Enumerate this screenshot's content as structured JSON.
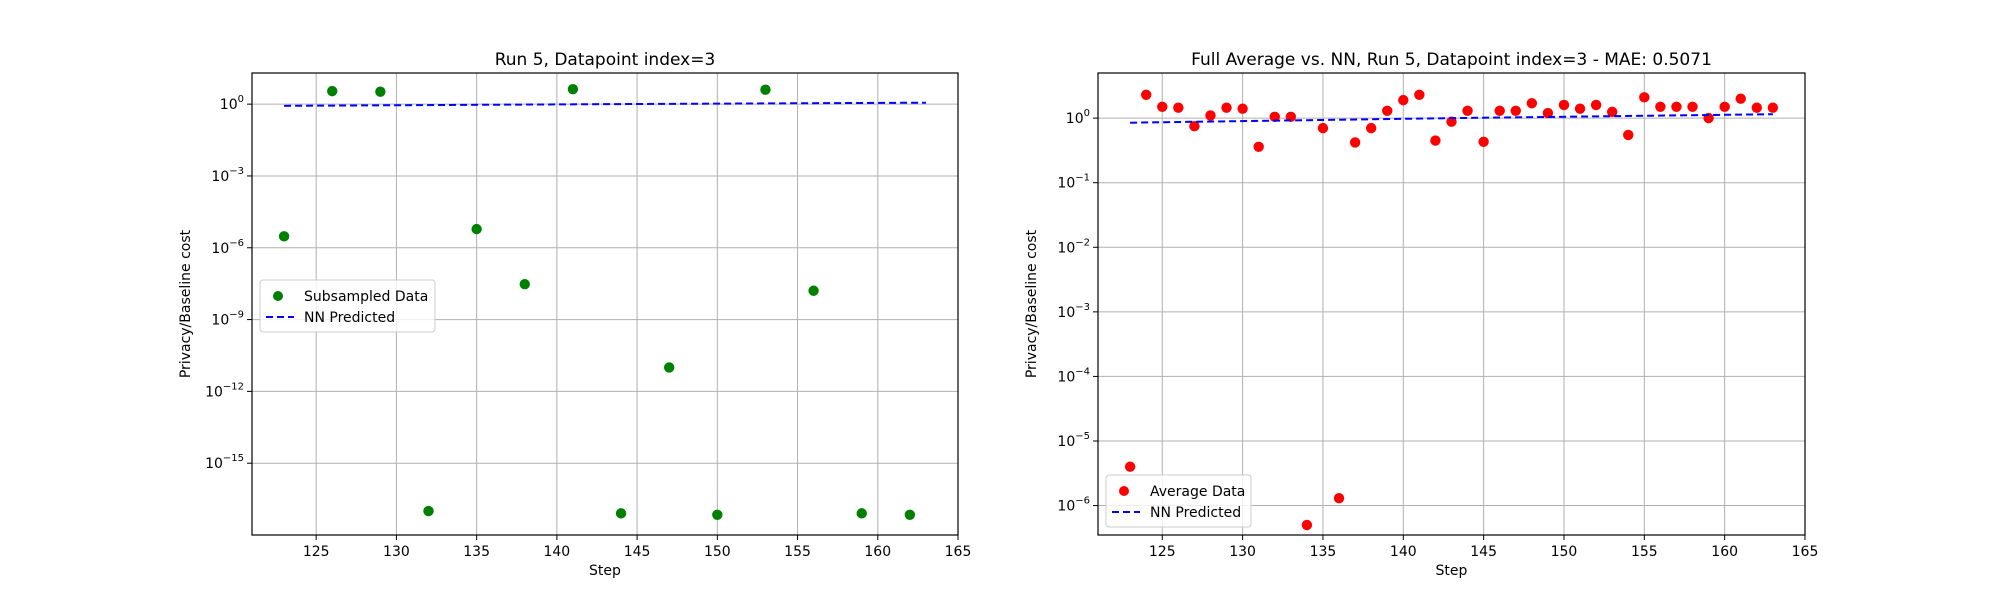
{
  "chart_data": [
    {
      "type": "scatter",
      "title": "Run 5, Datapoint index=3",
      "xlabel": "Step",
      "ylabel": "Privacy/Baseline cost",
      "yscale": "log",
      "xlim": [
        121,
        165
      ],
      "ylim": [
        1e-18,
        20
      ],
      "grid": true,
      "legend_position": "center-left",
      "x_ticks": [
        125,
        130,
        135,
        140,
        145,
        150,
        155,
        160,
        165
      ],
      "y_ticks": [
        {
          "value": 1e-15,
          "base": "10",
          "exp": "−15"
        },
        {
          "value": 1e-12,
          "base": "10",
          "exp": "−12"
        },
        {
          "value": 1e-09,
          "base": "10",
          "exp": "−9"
        },
        {
          "value": 1e-06,
          "base": "10",
          "exp": "−6"
        },
        {
          "value": 0.001,
          "base": "10",
          "exp": "−3"
        },
        {
          "value": 1,
          "base": "10",
          "exp": "0"
        }
      ],
      "series": [
        {
          "name": "Subsampled Data",
          "kind": "scatter",
          "color": "#008000",
          "points": [
            [
              123,
              3e-06
            ],
            [
              126,
              3.5
            ],
            [
              129,
              3.3
            ],
            [
              132,
              1e-17
            ],
            [
              135,
              6e-06
            ],
            [
              138,
              3e-08
            ],
            [
              141,
              4.2
            ],
            [
              144,
              8e-18
            ],
            [
              147,
              1e-11
            ],
            [
              150,
              7e-18
            ],
            [
              153,
              4.0
            ],
            [
              156,
              1.6e-08
            ],
            [
              159,
              8e-18
            ],
            [
              162,
              7e-18
            ]
          ]
        },
        {
          "name": "NN Predicted",
          "kind": "line",
          "style": "dashed",
          "color": "#0000ff",
          "points": [
            [
              123,
              0.85
            ],
            [
              143,
              1.0
            ],
            [
              163,
              1.15
            ]
          ]
        }
      ]
    },
    {
      "type": "scatter",
      "title": "Full Average vs. NN, Run 5, Datapoint index=3 - MAE: 0.5071",
      "xlabel": "Step",
      "ylabel": "Privacy/Baseline cost",
      "yscale": "log",
      "xlim": [
        121,
        165
      ],
      "ylim": [
        3.5e-07,
        5
      ],
      "grid": true,
      "legend_position": "lower-left",
      "x_ticks": [
        125,
        130,
        135,
        140,
        145,
        150,
        155,
        160,
        165
      ],
      "y_ticks": [
        {
          "value": 1e-06,
          "base": "10",
          "exp": "−6"
        },
        {
          "value": 1e-05,
          "base": "10",
          "exp": "−5"
        },
        {
          "value": 0.0001,
          "base": "10",
          "exp": "−4"
        },
        {
          "value": 0.001,
          "base": "10",
          "exp": "−3"
        },
        {
          "value": 0.01,
          "base": "10",
          "exp": "−2"
        },
        {
          "value": 0.1,
          "base": "10",
          "exp": "−1"
        },
        {
          "value": 1,
          "base": "10",
          "exp": "0"
        }
      ],
      "series": [
        {
          "name": "Average Data",
          "kind": "scatter",
          "color": "#ff0000",
          "points": [
            [
              123,
              4e-06
            ],
            [
              124,
              2.3
            ],
            [
              125,
              1.5
            ],
            [
              126,
              1.45
            ],
            [
              127,
              0.75
            ],
            [
              128,
              1.1
            ],
            [
              129,
              1.45
            ],
            [
              130,
              1.4
            ],
            [
              131,
              0.36
            ],
            [
              132,
              1.05
            ],
            [
              133,
              1.05
            ],
            [
              134,
              5e-07
            ],
            [
              135,
              0.7
            ],
            [
              136,
              1.3e-06
            ],
            [
              137,
              0.42
            ],
            [
              138,
              0.7
            ],
            [
              139,
              1.3
            ],
            [
              140,
              1.9
            ],
            [
              141,
              2.3
            ],
            [
              142,
              0.45
            ],
            [
              143,
              0.88
            ],
            [
              144,
              1.3
            ],
            [
              145,
              0.43
            ],
            [
              146,
              1.3
            ],
            [
              147,
              1.3
            ],
            [
              148,
              1.7
            ],
            [
              149,
              1.2
            ],
            [
              150,
              1.6
            ],
            [
              151,
              1.4
            ],
            [
              152,
              1.6
            ],
            [
              153,
              1.25
            ],
            [
              154,
              0.55
            ],
            [
              155,
              2.1
            ],
            [
              156,
              1.5
            ],
            [
              157,
              1.5
            ],
            [
              158,
              1.5
            ],
            [
              159,
              1.0
            ],
            [
              160,
              1.5
            ],
            [
              161,
              2.0
            ],
            [
              162,
              1.45
            ],
            [
              163,
              1.45
            ]
          ]
        },
        {
          "name": "NN Predicted",
          "kind": "line",
          "style": "dashed",
          "color": "#0000ff",
          "points": [
            [
              123,
              0.85
            ],
            [
              143,
              1.0
            ],
            [
              163,
              1.15
            ]
          ]
        }
      ]
    }
  ]
}
